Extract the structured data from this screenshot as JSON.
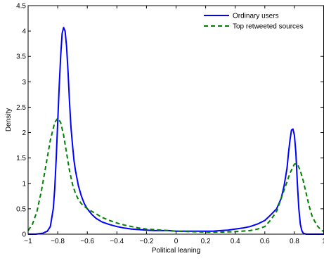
{
  "chart_data": {
    "type": "line",
    "xlabel": "Political leaning",
    "ylabel": "Density",
    "xlim": [
      -1,
      1
    ],
    "ylim": [
      0,
      4.5
    ],
    "xticks": [
      -1,
      -0.8,
      -0.6,
      -0.4,
      -0.2,
      0,
      0.2,
      0.4,
      0.6,
      0.8,
      1
    ],
    "xtick_labels": [
      "−1",
      "−0.8",
      "−0.6",
      "−0.4",
      "−0.2",
      "0",
      "0.2",
      "0.4",
      "0.6",
      "0.8",
      "1"
    ],
    "yticks": [
      0,
      0.5,
      1,
      1.5,
      2,
      2.5,
      3,
      3.5,
      4,
      4.5
    ],
    "ytick_labels": [
      "0",
      "0.5",
      "1",
      "1.5",
      "2",
      "2.5",
      "3",
      "3.5",
      "4",
      "4.5"
    ],
    "grid": false,
    "legend_position": "top-right",
    "series": [
      {
        "name": "Ordinary users",
        "color": "#0000ff",
        "style": "solid",
        "x": [
          -1,
          -0.95,
          -0.9,
          -0.87,
          -0.85,
          -0.83,
          -0.82,
          -0.81,
          -0.8,
          -0.79,
          -0.78,
          -0.77,
          -0.76,
          -0.75,
          -0.74,
          -0.73,
          -0.72,
          -0.71,
          -0.7,
          -0.69,
          -0.68,
          -0.66,
          -0.64,
          -0.62,
          -0.6,
          -0.57,
          -0.54,
          -0.5,
          -0.45,
          -0.4,
          -0.35,
          -0.3,
          -0.25,
          -0.2,
          -0.15,
          -0.1,
          -0.05,
          0,
          0.05,
          0.1,
          0.15,
          0.2,
          0.25,
          0.3,
          0.35,
          0.4,
          0.45,
          0.5,
          0.55,
          0.6,
          0.64,
          0.68,
          0.71,
          0.73,
          0.75,
          0.76,
          0.77,
          0.78,
          0.79,
          0.8,
          0.81,
          0.82,
          0.83,
          0.84,
          0.85,
          0.86,
          0.88,
          0.92,
          0.96,
          1
        ],
        "y": [
          0,
          0,
          0.02,
          0.06,
          0.15,
          0.5,
          0.9,
          1.5,
          2.2,
          2.9,
          3.5,
          3.95,
          4.07,
          4.0,
          3.7,
          3.2,
          2.6,
          2.1,
          1.75,
          1.45,
          1.25,
          0.95,
          0.75,
          0.6,
          0.5,
          0.39,
          0.31,
          0.24,
          0.19,
          0.15,
          0.12,
          0.1,
          0.09,
          0.08,
          0.07,
          0.07,
          0.07,
          0.06,
          0.06,
          0.06,
          0.06,
          0.06,
          0.06,
          0.07,
          0.08,
          0.1,
          0.12,
          0.15,
          0.2,
          0.27,
          0.38,
          0.5,
          0.7,
          0.95,
          1.3,
          1.6,
          1.85,
          2.05,
          2.07,
          1.95,
          1.6,
          1.0,
          0.5,
          0.2,
          0.07,
          0.02,
          0,
          0,
          0,
          0
        ]
      },
      {
        "name": "Top retweeted sources",
        "color": "#008000",
        "style": "dashed",
        "x": [
          -1,
          -0.97,
          -0.94,
          -0.91,
          -0.88,
          -0.85,
          -0.82,
          -0.8,
          -0.78,
          -0.76,
          -0.74,
          -0.72,
          -0.7,
          -0.68,
          -0.66,
          -0.64,
          -0.62,
          -0.6,
          -0.57,
          -0.54,
          -0.5,
          -0.45,
          -0.4,
          -0.35,
          -0.3,
          -0.25,
          -0.2,
          -0.1,
          0,
          0.1,
          0.2,
          0.3,
          0.4,
          0.5,
          0.55,
          0.6,
          0.64,
          0.68,
          0.71,
          0.74,
          0.77,
          0.8,
          0.82,
          0.84,
          0.86,
          0.88,
          0.9,
          0.92,
          0.95,
          0.98,
          1
        ],
        "y": [
          0.07,
          0.2,
          0.45,
          0.85,
          1.35,
          1.85,
          2.2,
          2.28,
          2.2,
          1.95,
          1.6,
          1.25,
          0.98,
          0.8,
          0.68,
          0.6,
          0.55,
          0.5,
          0.45,
          0.4,
          0.33,
          0.27,
          0.22,
          0.18,
          0.15,
          0.12,
          0.1,
          0.08,
          0.06,
          0.05,
          0.04,
          0.04,
          0.05,
          0.07,
          0.1,
          0.15,
          0.28,
          0.45,
          0.7,
          0.95,
          1.2,
          1.38,
          1.38,
          1.25,
          1.05,
          0.8,
          0.55,
          0.35,
          0.18,
          0.08,
          0.05
        ]
      }
    ]
  }
}
